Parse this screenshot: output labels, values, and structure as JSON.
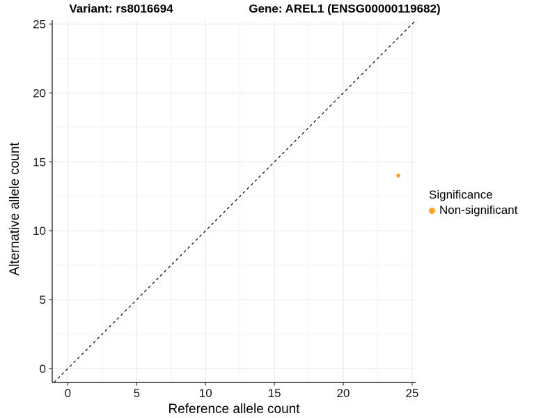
{
  "figure": {
    "title_variant": "Variant: rs8016694",
    "title_gene": "Gene: AREL1 (ENSG00000119682)"
  },
  "chart_data": {
    "type": "scatter",
    "title": "Variant: rs8016694 / Gene: AREL1 (ENSG00000119682)",
    "xlabel": "Reference allele count",
    "ylabel": "Alternative allele count",
    "xlim": [
      0,
      25
    ],
    "ylim": [
      0,
      25
    ],
    "x_ticks": [
      0,
      5,
      10,
      15,
      20,
      25
    ],
    "y_ticks": [
      0,
      5,
      10,
      15,
      20,
      25
    ],
    "x_minor_ticks": [
      2.5,
      7.5,
      12.5,
      17.5,
      22.5
    ],
    "y_minor_ticks": [
      2.5,
      7.5,
      12.5,
      17.5,
      22.5
    ],
    "grid": true,
    "points": [
      {
        "x": 24,
        "y": 14,
        "group": "Non-significant"
      }
    ],
    "reference_line": {
      "style": "dashed",
      "equation": "y = x"
    },
    "legend": {
      "position": "right",
      "title": "Significance",
      "items": [
        {
          "label": "Non-significant",
          "color": "#FFA226"
        }
      ]
    },
    "colors": {
      "point": "#FFA226",
      "grid_major": "#e7e7e7",
      "grid_minor": "#f3f3f3",
      "axis_line": "#2e2e2e",
      "identity_line": "#000000",
      "tick_text": "#1a1a1a"
    }
  }
}
